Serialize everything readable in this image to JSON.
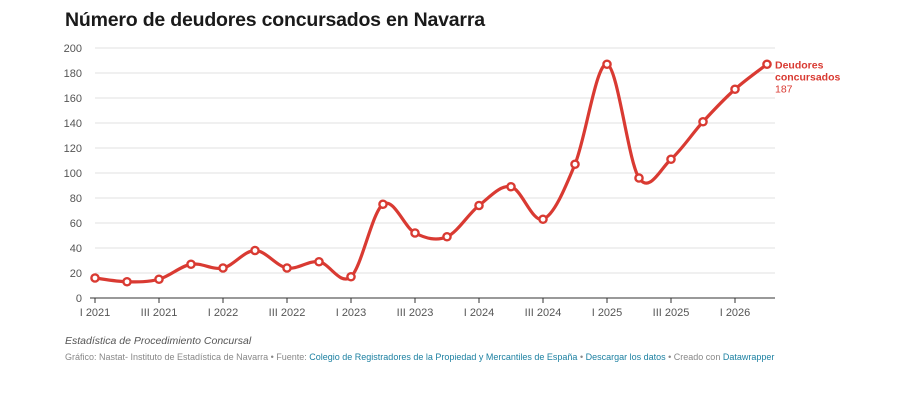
{
  "title": "Número de deudores concursados en Navarra",
  "note": "Estadística de Procedimiento Concursal",
  "footer": {
    "prefix": "Gráfico: Nastat- Instituto de Estadística de Navarra • Fuente: ",
    "source_link": "Colegio de Registradores de la Propiedad y Mercantiles de España",
    "sep1": " • ",
    "download_link": "Descargar los datos",
    "sep2": " • Creado con ",
    "tool_link": "Datawrapper"
  },
  "colors": {
    "series": "#d93a32",
    "grid": "#e2e2e2",
    "axis": "#333333",
    "tick_text": "#555555"
  },
  "chart_data": {
    "type": "line",
    "title": "Número de deudores concursados en Navarra",
    "xlabel": "",
    "ylabel": "",
    "ylim": [
      0,
      200
    ],
    "yticks": [
      0,
      20,
      40,
      60,
      80,
      100,
      120,
      140,
      160,
      180,
      200
    ],
    "grid": true,
    "x": [
      "I 2021",
      "II 2021",
      "III 2021",
      "IV 2021",
      "I 2022",
      "II 2022",
      "III 2022",
      "IV 2022",
      "I 2023",
      "II 2023",
      "III 2023",
      "IV 2023",
      "I 2024",
      "II 2024",
      "III 2024",
      "IV 2024",
      "I 2025",
      "II 2025",
      "III 2025",
      "IV 2025",
      "I 2026",
      "II 2026"
    ],
    "x_tick_labels": [
      "I 2021",
      "III 2021",
      "I 2022",
      "III 2022",
      "I 2023",
      "III 2023",
      "I 2024",
      "III 2024",
      "I 2025",
      "III 2025",
      "I 2026"
    ],
    "series": [
      {
        "name": "Deudores concursados",
        "values": [
          16,
          13,
          15,
          27,
          24,
          38,
          24,
          29,
          17,
          75,
          52,
          49,
          74,
          89,
          63,
          107,
          187,
          96,
          111,
          141,
          167,
          187
        ]
      }
    ],
    "end_label": {
      "name": "Deudores concursados",
      "value": "187"
    }
  }
}
